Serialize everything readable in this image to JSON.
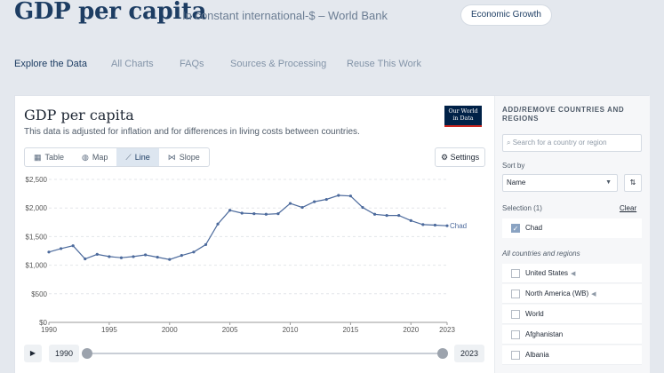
{
  "header": {
    "title": "GDP per capita",
    "subtitle": "In constant international-$ – World Bank",
    "topic": "Economic Growth"
  },
  "nav": {
    "tabs": [
      "Explore the Data",
      "All Charts",
      "FAQs",
      "Sources & Processing",
      "Reuse This Work"
    ],
    "active": "Explore the Data"
  },
  "card": {
    "title": "GDP per capita",
    "subtitle": "This data is adjusted for inflation and for differences in living costs between countries.",
    "logo_line1": "Our World",
    "logo_line2": "in Data",
    "view_tabs": [
      {
        "label": "Table",
        "icon": "table-icon"
      },
      {
        "label": "Map",
        "icon": "globe-icon"
      },
      {
        "label": "Line",
        "icon": "line-chart-icon"
      },
      {
        "label": "Slope",
        "icon": "slope-chart-icon"
      }
    ],
    "active_view": "Line",
    "settings_label": "Settings"
  },
  "timeline": {
    "start_year": "1990",
    "end_year": "2023",
    "play_icon": "play-icon"
  },
  "chart_data": {
    "type": "line",
    "ylim": [
      0,
      2500
    ],
    "yticks": [
      0,
      500,
      1000,
      1500,
      2000,
      2500
    ],
    "ytick_labels": [
      "$0",
      "$500",
      "$1,000",
      "$1,500",
      "$2,000",
      "$2,500"
    ],
    "xticks": [
      1990,
      1995,
      2000,
      2005,
      2010,
      2015,
      2020,
      2023
    ],
    "xlim": [
      1990,
      2023
    ],
    "grid": true,
    "series": [
      {
        "name": "Chad",
        "color": "#4c6a9c",
        "x": [
          1990,
          1991,
          1992,
          1993,
          1994,
          1995,
          1996,
          1997,
          1998,
          1999,
          2000,
          2001,
          2002,
          2003,
          2004,
          2005,
          2006,
          2007,
          2008,
          2009,
          2010,
          2011,
          2012,
          2013,
          2014,
          2015,
          2016,
          2017,
          2018,
          2019,
          2020,
          2021,
          2022,
          2023
        ],
        "values": [
          1230,
          1290,
          1340,
          1110,
          1190,
          1150,
          1130,
          1150,
          1180,
          1140,
          1100,
          1170,
          1230,
          1360,
          1720,
          1960,
          1910,
          1900,
          1890,
          1900,
          2080,
          2010,
          2110,
          2150,
          2220,
          2210,
          2010,
          1890,
          1870,
          1870,
          1780,
          1710,
          1700,
          1690
        ]
      }
    ]
  },
  "sidebar": {
    "heading": "ADD/REMOVE COUNTRIES AND REGIONS",
    "search_placeholder": "Search for a country or region",
    "sort_label": "Sort by",
    "sort_value": "Name",
    "selection_label": "Selection (1)",
    "clear_label": "Clear",
    "selected": [
      "Chad"
    ],
    "all_label": "All countries and regions",
    "items": [
      {
        "label": "United States",
        "flag": true
      },
      {
        "label": "North America (WB)",
        "flag": true
      },
      {
        "label": "World",
        "flag": false
      },
      {
        "label": "Afghanistan",
        "flag": false
      },
      {
        "label": "Albania",
        "flag": false
      }
    ]
  }
}
